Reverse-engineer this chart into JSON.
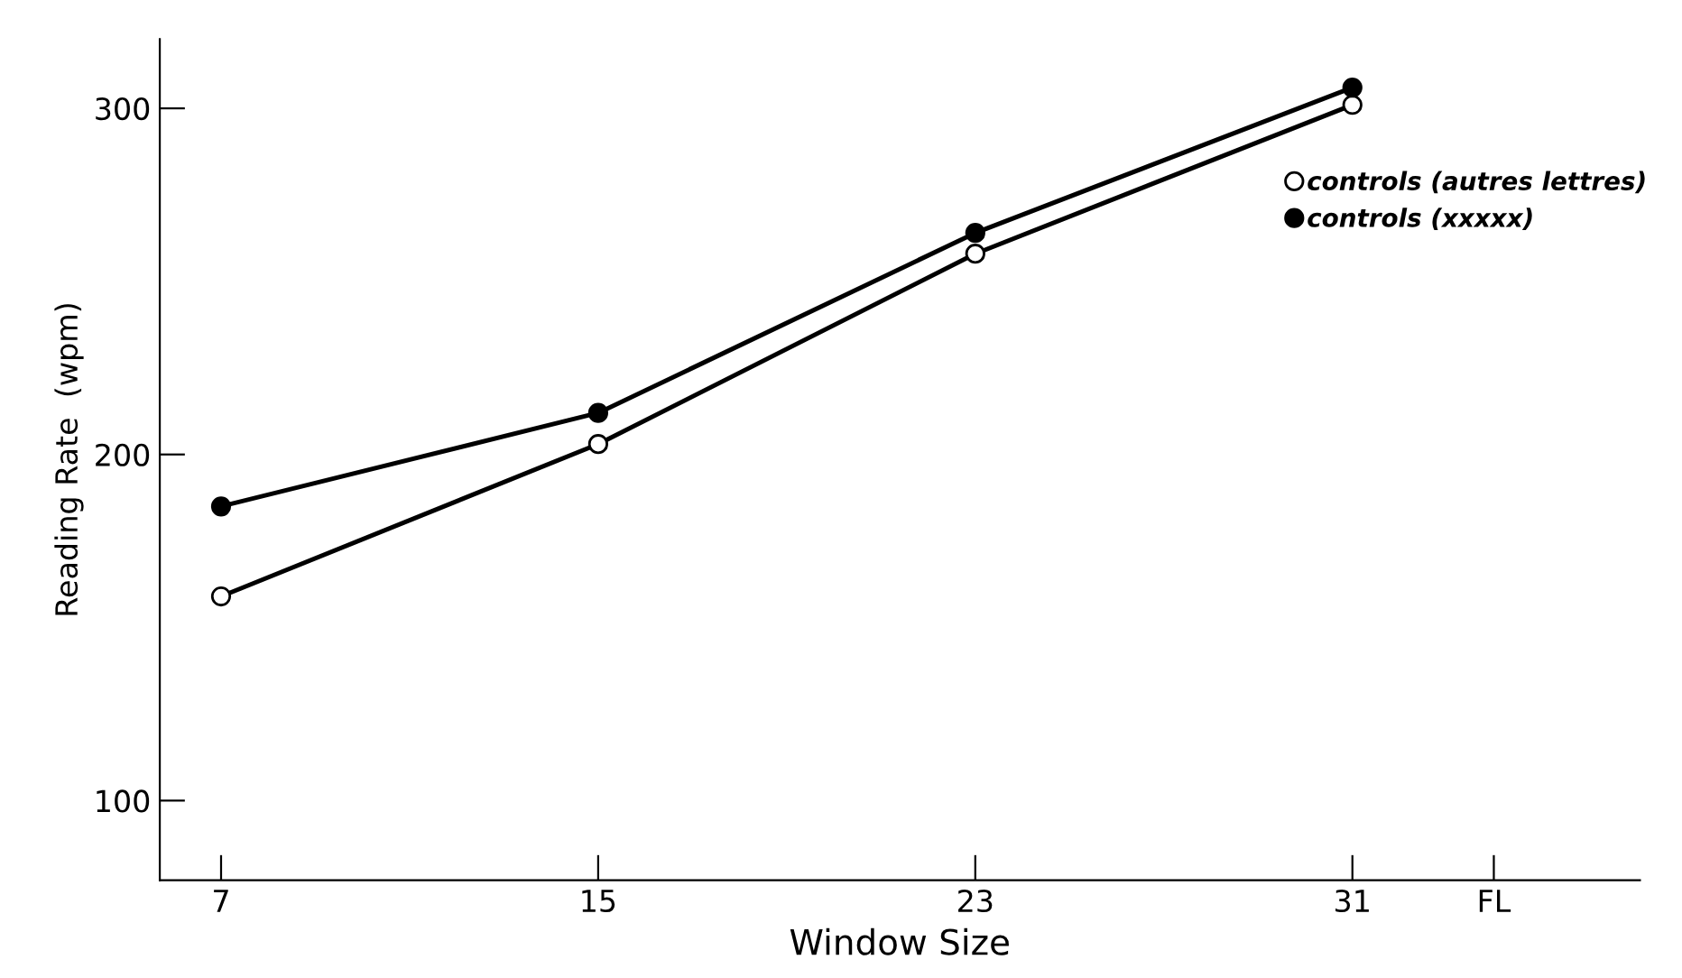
{
  "chart_data": {
    "type": "line",
    "xlabel": "Window Size",
    "ylabel": "Reading Rate  (wpm)",
    "x": [
      7,
      15,
      23,
      31
    ],
    "series": [
      {
        "name": "controls (autres lettres)",
        "color": "#ffffff",
        "values": [
          159,
          203,
          258,
          301
        ]
      },
      {
        "name": "controls (xxxxx)",
        "color": "#000000",
        "values": [
          185,
          212,
          264,
          306
        ]
      }
    ],
    "xlim": [
      5.7,
      37.1
    ],
    "ylim": [
      77,
      320
    ],
    "xticks": [
      7,
      15,
      23,
      31,
      {
        "value": 34,
        "label": "FL"
      }
    ],
    "yticks": [
      100,
      200,
      300
    ],
    "marker": "circle",
    "line_style": "solid",
    "grid": false,
    "legend": "top right"
  }
}
